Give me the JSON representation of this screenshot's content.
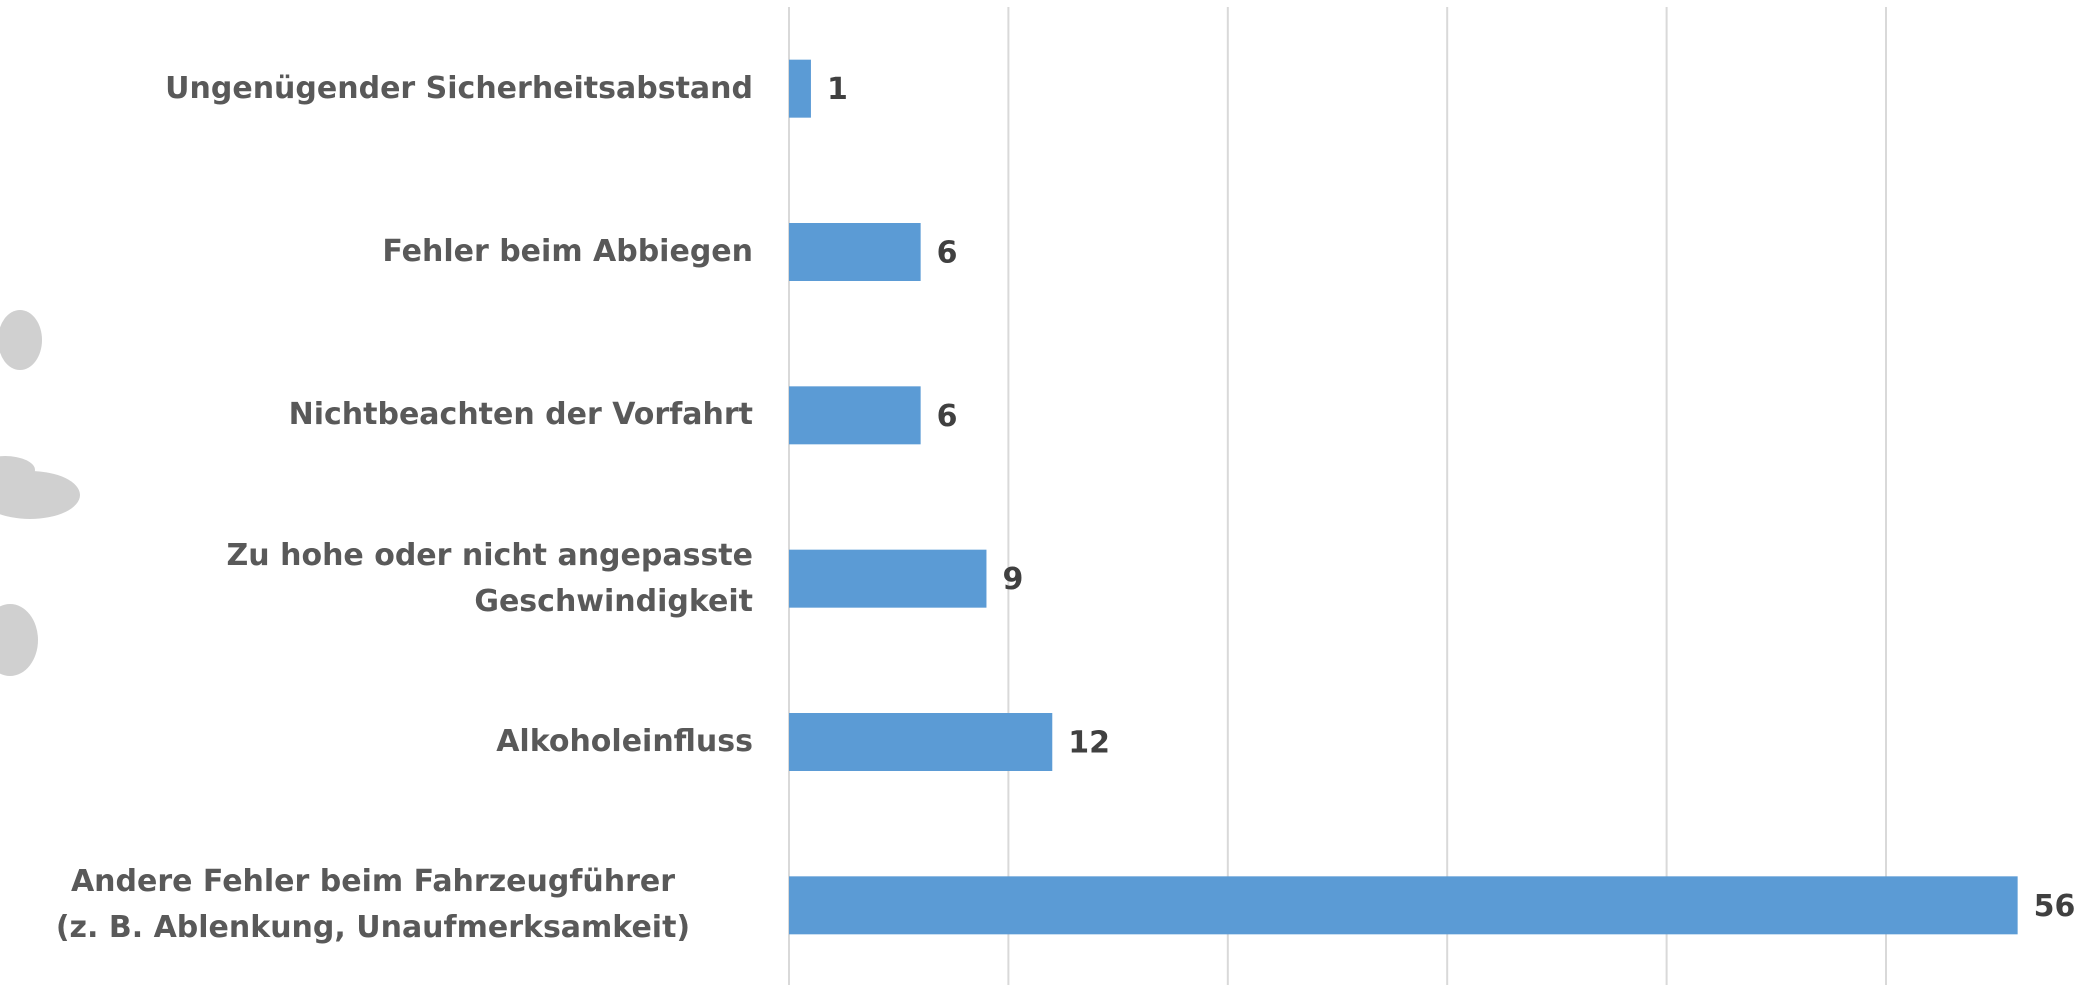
{
  "chart_data": {
    "type": "bar",
    "orientation": "horizontal",
    "categories": [
      "Ungenügender Sicherheitsabstand",
      "Fehler beim Abbiegen",
      "Nichtbeachten der Vorfahrt",
      "Zu hohe oder nicht angepasste Geschwindigkeit",
      "Alkoholeinfluss",
      "Andere Fehler beim Fahrzeugführer\n(z. B. Ablenkung, Unaufmerksamkeit)"
    ],
    "values": [
      1,
      6,
      6,
      9,
      12,
      56
    ],
    "color": "#5b9bd5",
    "xlim": [
      0,
      60
    ],
    "xticks": [
      0,
      10,
      20,
      30,
      40,
      50
    ],
    "grid": true
  }
}
